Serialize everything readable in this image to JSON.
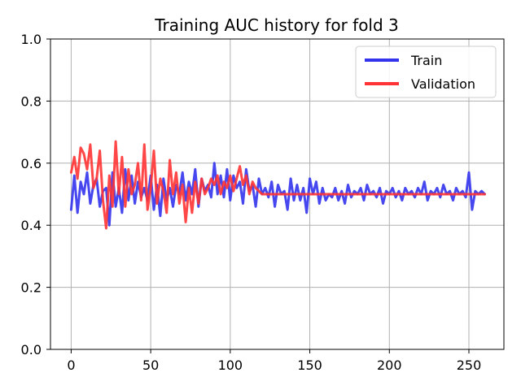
{
  "chart_data": {
    "type": "line",
    "title": "Training AUC history for fold 3",
    "xlabel": "",
    "ylabel": "",
    "xlim": [
      -13,
      272
    ],
    "ylim": [
      0.0,
      1.0
    ],
    "xticks": [
      0,
      50,
      100,
      150,
      200,
      250
    ],
    "yticks": [
      0.0,
      0.2,
      0.4,
      0.6,
      0.8,
      1.0
    ],
    "xtick_labels": [
      "0",
      "50",
      "100",
      "150",
      "200",
      "250"
    ],
    "ytick_labels": [
      "0.0",
      "0.2",
      "0.4",
      "0.6",
      "0.8",
      "1.0"
    ],
    "grid": true,
    "legend_position": "top-right",
    "series": [
      {
        "name": "Train",
        "color": "#3333ee",
        "x": [
          0,
          2,
          4,
          6,
          8,
          10,
          12,
          14,
          16,
          18,
          20,
          22,
          24,
          26,
          28,
          30,
          32,
          34,
          36,
          38,
          40,
          42,
          44,
          46,
          48,
          50,
          52,
          54,
          56,
          58,
          60,
          62,
          64,
          66,
          68,
          70,
          72,
          74,
          76,
          78,
          80,
          82,
          84,
          86,
          88,
          90,
          92,
          94,
          96,
          98,
          100,
          102,
          104,
          106,
          108,
          110,
          112,
          114,
          116,
          118,
          120,
          122,
          124,
          126,
          128,
          130,
          132,
          134,
          136,
          138,
          140,
          142,
          144,
          146,
          148,
          150,
          152,
          154,
          156,
          158,
          160,
          162,
          164,
          166,
          168,
          170,
          172,
          174,
          176,
          178,
          180,
          182,
          184,
          186,
          188,
          190,
          192,
          194,
          196,
          198,
          200,
          202,
          204,
          206,
          208,
          210,
          212,
          214,
          216,
          218,
          220,
          222,
          224,
          226,
          228,
          230,
          232,
          234,
          236,
          238,
          240,
          242,
          244,
          246,
          248,
          250,
          252,
          254,
          256,
          258,
          260
        ],
        "values": [
          0.45,
          0.56,
          0.44,
          0.54,
          0.5,
          0.57,
          0.47,
          0.53,
          0.55,
          0.46,
          0.51,
          0.52,
          0.4,
          0.57,
          0.46,
          0.52,
          0.44,
          0.58,
          0.48,
          0.56,
          0.47,
          0.54,
          0.49,
          0.52,
          0.48,
          0.56,
          0.45,
          0.53,
          0.43,
          0.55,
          0.48,
          0.52,
          0.46,
          0.53,
          0.5,
          0.57,
          0.48,
          0.54,
          0.5,
          0.58,
          0.46,
          0.55,
          0.51,
          0.53,
          0.49,
          0.6,
          0.5,
          0.56,
          0.49,
          0.58,
          0.48,
          0.56,
          0.52,
          0.54,
          0.47,
          0.58,
          0.51,
          0.53,
          0.46,
          0.55,
          0.5,
          0.52,
          0.49,
          0.54,
          0.46,
          0.53,
          0.5,
          0.51,
          0.45,
          0.55,
          0.48,
          0.53,
          0.48,
          0.52,
          0.44,
          0.55,
          0.5,
          0.54,
          0.47,
          0.52,
          0.48,
          0.5,
          0.49,
          0.52,
          0.48,
          0.51,
          0.47,
          0.53,
          0.49,
          0.51,
          0.5,
          0.52,
          0.48,
          0.53,
          0.5,
          0.51,
          0.49,
          0.52,
          0.47,
          0.51,
          0.5,
          0.52,
          0.49,
          0.51,
          0.48,
          0.52,
          0.5,
          0.51,
          0.49,
          0.52,
          0.5,
          0.54,
          0.48,
          0.51,
          0.5,
          0.52,
          0.49,
          0.53,
          0.5,
          0.51,
          0.48,
          0.52,
          0.5,
          0.51,
          0.49,
          0.57,
          0.45,
          0.51,
          0.5,
          0.51,
          0.5
        ]
      },
      {
        "name": "Validation",
        "color": "#ff3333",
        "x": [
          0,
          2,
          4,
          6,
          8,
          10,
          12,
          14,
          16,
          18,
          20,
          22,
          24,
          26,
          28,
          30,
          32,
          34,
          36,
          38,
          40,
          42,
          44,
          46,
          48,
          50,
          52,
          54,
          56,
          58,
          60,
          62,
          64,
          66,
          68,
          70,
          72,
          74,
          76,
          78,
          80,
          82,
          84,
          86,
          88,
          90,
          92,
          94,
          96,
          98,
          100,
          102,
          104,
          106,
          108,
          110,
          112,
          114,
          116,
          118,
          120,
          122,
          124,
          126,
          128,
          130,
          132,
          134,
          136,
          138,
          140,
          142,
          144,
          146,
          148,
          150,
          152,
          154,
          156,
          158,
          160,
          162,
          164,
          166,
          168,
          170,
          172,
          174,
          176,
          178,
          180,
          182,
          184,
          186,
          188,
          190,
          192,
          194,
          196,
          198,
          200,
          202,
          204,
          206,
          208,
          210,
          212,
          214,
          216,
          218,
          220,
          222,
          224,
          226,
          228,
          230,
          232,
          234,
          236,
          238,
          240,
          242,
          244,
          246,
          248,
          250,
          252,
          254,
          256,
          258,
          260
        ],
        "values": [
          0.57,
          0.62,
          0.55,
          0.65,
          0.63,
          0.58,
          0.66,
          0.52,
          0.55,
          0.64,
          0.48,
          0.39,
          0.56,
          0.46,
          0.67,
          0.5,
          0.62,
          0.46,
          0.58,
          0.5,
          0.53,
          0.6,
          0.48,
          0.66,
          0.45,
          0.52,
          0.64,
          0.47,
          0.55,
          0.51,
          0.44,
          0.61,
          0.5,
          0.57,
          0.47,
          0.53,
          0.41,
          0.52,
          0.44,
          0.54,
          0.47,
          0.55,
          0.5,
          0.52,
          0.55,
          0.53,
          0.56,
          0.5,
          0.54,
          0.52,
          0.56,
          0.51,
          0.55,
          0.59,
          0.53,
          0.56,
          0.5,
          0.54,
          0.52,
          0.51,
          0.5,
          0.5,
          0.5,
          0.5,
          0.5,
          0.5,
          0.5,
          0.5,
          0.5,
          0.5,
          0.5,
          0.5,
          0.5,
          0.5,
          0.5,
          0.5,
          0.5,
          0.5,
          0.5,
          0.5,
          0.5,
          0.5,
          0.5,
          0.5,
          0.5,
          0.5,
          0.5,
          0.5,
          0.5,
          0.5,
          0.5,
          0.5,
          0.5,
          0.5,
          0.5,
          0.5,
          0.5,
          0.5,
          0.5,
          0.5,
          0.5,
          0.5,
          0.5,
          0.5,
          0.5,
          0.5,
          0.5,
          0.5,
          0.5,
          0.5,
          0.5,
          0.5,
          0.5,
          0.5,
          0.5,
          0.5,
          0.5,
          0.5,
          0.5,
          0.5,
          0.5,
          0.5,
          0.5,
          0.5,
          0.5,
          0.5,
          0.5,
          0.5,
          0.5,
          0.5,
          0.5
        ]
      }
    ]
  }
}
